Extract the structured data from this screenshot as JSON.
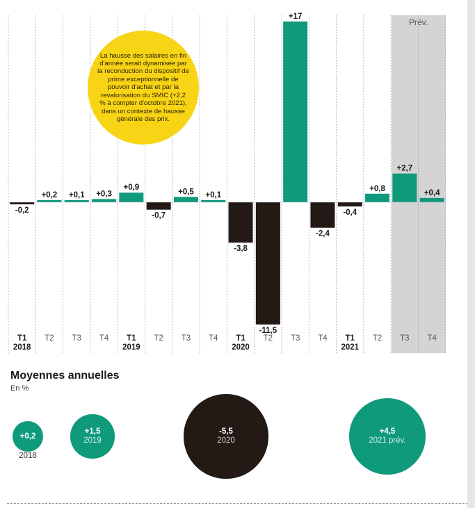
{
  "chart_data": [
    {
      "type": "bar",
      "categories": [
        "T1",
        "T2",
        "T3",
        "T4",
        "T1",
        "T2",
        "T3",
        "T4",
        "T1",
        "T2",
        "T3",
        "T4",
        "T1",
        "T2",
        "T3",
        "T4"
      ],
      "years": [
        {
          "label": "2018",
          "index": 0
        },
        {
          "label": "2019",
          "index": 4
        },
        {
          "label": "2020",
          "index": 8
        },
        {
          "label": "2021",
          "index": 12
        }
      ],
      "values": [
        -0.2,
        0.2,
        0.1,
        0.3,
        0.9,
        -0.7,
        0.5,
        0.1,
        -3.8,
        -11.5,
        17,
        -2.4,
        -0.4,
        0.8,
        2.7,
        0.4
      ],
      "value_labels": [
        "-0,2",
        "+0,2",
        "+0,1",
        "+0,3",
        "+0,9",
        "-0,7",
        "+0,5",
        "+0,1",
        "-3,8",
        "-11,5",
        "+17",
        "-2,4",
        "-0,4",
        "+0,8",
        "+2,7",
        "+0,4"
      ],
      "forecast": {
        "label": "Prév.",
        "start_index": 14,
        "end_index": 15
      },
      "annotation": "La hausse des salaires en fin d'année serait dynamisée par la reconduction du dispositif de prime exceptionnelle de pouvoir d'achat et par la revalorisation du SMIC (+2,2 % à compter d'octobre 2021), dans un contexte de hausse générale des prix.",
      "colors": {
        "positive": "#0f9a7c",
        "negative": "#231915",
        "forecast_band": "#d4d4d4",
        "annotation": "#f8d417"
      },
      "grid": "vertical dashed",
      "ylim": [
        -12,
        17.5
      ]
    },
    {
      "type": "bubble",
      "title": "Moyennes annuelles",
      "unit": "En %",
      "points": [
        {
          "value": 0.2,
          "label": "+0,2",
          "year": "2018",
          "color": "#0f9a7c"
        },
        {
          "value": 1.5,
          "label": "+1,5",
          "year": "2019",
          "color": "#0f9a7c"
        },
        {
          "value": -5.5,
          "label": "-5,5",
          "year": "2020",
          "color": "#231915"
        },
        {
          "value": 4.5,
          "label": "+4,5",
          "year": "2021 prév.",
          "color": "#0f9a7c"
        }
      ]
    }
  ]
}
